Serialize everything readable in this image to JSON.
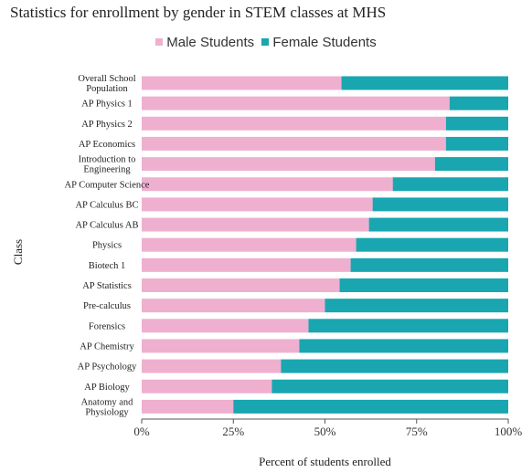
{
  "chart_data": {
    "type": "bar",
    "orientation": "horizontal",
    "stacked": "percent",
    "title": "Statistics for enrollment by gender in STEM classes at MHS",
    "xlabel": "Percent of students enrolled",
    "ylabel": "Class",
    "xlim": [
      0,
      100
    ],
    "x_ticks": [
      "0%",
      "25%",
      "50%",
      "75%",
      "100%"
    ],
    "grid": false,
    "legend_position": "top-center",
    "categories": [
      "Overall School Population",
      "AP Physics 1",
      "AP Physics 2",
      "AP Economics",
      "Introduction to Engineering",
      "AP Computer Science",
      "AP Calculus BC",
      "AP Calculus AB",
      "Physics",
      "Biotech 1",
      "AP Statistics",
      "Pre-calculus",
      "Forensics",
      "AP Chemistry",
      "AP Psychology",
      "AP Biology",
      "Anatomy and Physiology"
    ],
    "series": [
      {
        "name": "Male Students",
        "color": "#efb0cf",
        "values": [
          54.5,
          84,
          83,
          83,
          80,
          68.5,
          63,
          62,
          58.5,
          57,
          54,
          50,
          45.5,
          43,
          38,
          35.5,
          25
        ]
      },
      {
        "name": "Female Students",
        "color": "#1aa6b0",
        "values": [
          45.5,
          16,
          17,
          17,
          20,
          31.5,
          37,
          38,
          41.5,
          43,
          46,
          50,
          54.5,
          57,
          62,
          64.5,
          75
        ]
      }
    ]
  }
}
